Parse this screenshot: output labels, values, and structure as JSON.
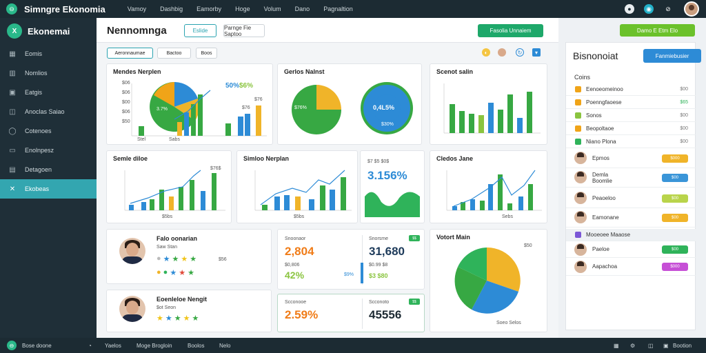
{
  "app": {
    "title": "Simngre Ekonomia"
  },
  "topnav": [
    "Vamoy",
    "Dashbig",
    "Eamorby",
    "Hoge",
    "Volum",
    "Dano",
    "Pagnaltion"
  ],
  "sidebar": {
    "brand": "Ekonemai",
    "items": [
      {
        "label": "Eomis",
        "icon": "grid-icon"
      },
      {
        "label": "Nomlios",
        "icon": "bar-chart-icon"
      },
      {
        "label": "Eatgis",
        "icon": "image-icon"
      },
      {
        "label": "Anoclas Saiao",
        "icon": "cup-icon"
      },
      {
        "label": "Cotenoes",
        "icon": "user-icon"
      },
      {
        "label": "Enolnpesz",
        "icon": "monitor-icon"
      },
      {
        "label": "Detagoen",
        "icon": "calendar-icon"
      },
      {
        "label": "Ekobeas",
        "icon": "puzzle-icon",
        "active": true
      }
    ]
  },
  "header": {
    "title": "Nennomnga",
    "btn1": "Eslide",
    "btn2": "Parnge Fie Saptoo",
    "green_btn": "Fasolia Unnaiem"
  },
  "top_right_btn": "Damo E Etm Elo",
  "toolbar": {
    "btn1": "Aeronnaumae",
    "btn2": "Bactoo",
    "btn3": "Boos"
  },
  "cards": {
    "c1": {
      "title": "Mendes Nerplen",
      "labels": [
        "$06",
        "$06",
        "$00",
        "$06",
        "$50"
      ],
      "pct1": "50%",
      "pct2": "$6%",
      "slice_label": "3.7%",
      "bar_label1": "$76",
      "bar_label2": "$76",
      "x_labels": [
        "Stel",
        "Sabs"
      ]
    },
    "c2": {
      "title": "Gerlos Nalnst",
      "donut_label": "$76%",
      "donut2_label": "0,4L5%",
      "donut2_sub": "$30%"
    },
    "c3": {
      "title": "Scenot salin"
    },
    "c4": {
      "title": "Semle diloe",
      "peak_label": "$76$",
      "x_label": "$5bs"
    },
    "c5": {
      "title": "Simloo Nerplan",
      "x_label": "$5bs"
    },
    "c6": {
      "label": "$7 $5 $0$",
      "value": "3.156%"
    },
    "c7": {
      "title": "Cledos Jane",
      "x_label": "Sebs"
    },
    "c8": {
      "title": "Falo oonarian",
      "sub": "Saw Stan",
      "rating_label": "$56"
    },
    "c9": {
      "title": "Eoenleloe Nengit",
      "sub": "$ot Seon"
    },
    "c10": {
      "label1": "Snoonaor",
      "value1": "2,804",
      "label2": "Snorsme",
      "value2": "31,680",
      "sub1": "$0,806",
      "pct": "42%",
      "mini": "$9%",
      "sub2": "$0.99 $8",
      "sub3": "$3 $80",
      "badge": "$$"
    },
    "c11": {
      "label1": "Scconooe",
      "value1": "2.59%",
      "label2": "Scconoto",
      "value2": "45556",
      "badge": "$$"
    },
    "c12": {
      "title": "Votort Main",
      "label": "$50",
      "footer": "Soeo Selos"
    }
  },
  "right_panel": {
    "title": "Bisnonoiat",
    "button": "Fanmiebusier",
    "subtitle": "Coins",
    "rows": [
      {
        "name": "Eenoeomeinoo",
        "value": "$00",
        "color": "#f0a418"
      },
      {
        "name": "Poenngfaoese",
        "value": "$65",
        "color": "#f0a418"
      },
      {
        "name": "Sonos",
        "value": "$00",
        "color": "#8ac43f"
      },
      {
        "name": "Beopoltaoe",
        "value": "$00",
        "color": "#f0a418"
      },
      {
        "name": "Niano Plona",
        "value": "$00",
        "color": "#2fb35a"
      }
    ],
    "people": [
      {
        "name": "Epmos",
        "badge": "$000",
        "badge_color": "#f0b429"
      },
      {
        "name": "Demla Boomlie",
        "badge": "$00",
        "badge_color": "#3a95d8"
      },
      {
        "name": "Peaoeloo",
        "badge": "$00",
        "badge_color": "#b9d44b"
      },
      {
        "name": "Eamonane",
        "badge": "$00",
        "badge_color": "#f0b429"
      }
    ],
    "extra": [
      {
        "name": "Mooeoee Maaose",
        "badge": "",
        "badge_color": "#7b57d6"
      },
      {
        "name": "Paeloe",
        "badge": "$00",
        "badge_color": "#2fb35a"
      },
      {
        "name": "Aapachoa",
        "badge": "$000",
        "badge_color": "#c64fd6"
      }
    ]
  },
  "footer": {
    "left": "Bose doone",
    "items": [
      "Yaelos",
      "Moge Brogloin",
      "Boolos",
      "Nelo"
    ],
    "right": "Bootion"
  }
}
